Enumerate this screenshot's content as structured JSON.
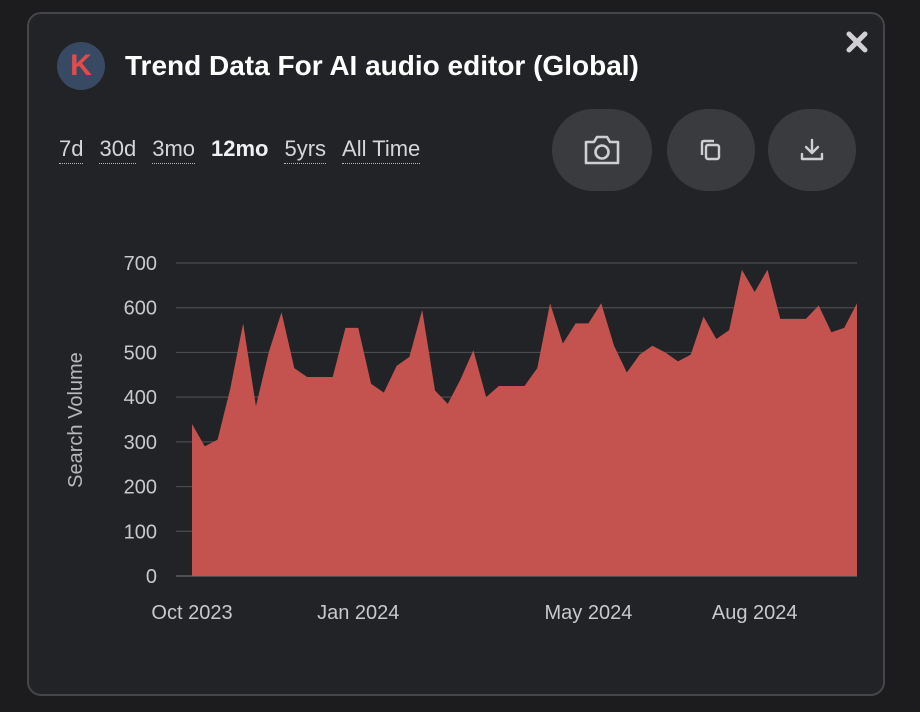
{
  "header": {
    "logo_letter": "K",
    "title": "Trend Data For AI audio editor (Global)"
  },
  "ranges": [
    {
      "label": "7d",
      "active": false
    },
    {
      "label": "30d",
      "active": false
    },
    {
      "label": "3mo",
      "active": false
    },
    {
      "label": "12mo",
      "active": true
    },
    {
      "label": "5yrs",
      "active": false
    },
    {
      "label": "All Time",
      "active": false
    }
  ],
  "actions": {
    "screenshot_icon": "camera-icon",
    "copy_icon": "copy-icon",
    "download_icon": "download-icon",
    "close_icon": "close-icon"
  },
  "colors": {
    "area_fill": "#c4524f",
    "logo_bg": "#384a63",
    "logo_letter": "#e24b4b"
  },
  "chart_data": {
    "type": "area",
    "ylabel": "Search Volume",
    "xlabel": "",
    "ylim": [
      0,
      700
    ],
    "yticks": [
      0,
      100,
      200,
      300,
      400,
      500,
      600,
      700
    ],
    "xtick_labels": [
      {
        "label": "Oct 2023",
        "index": 0
      },
      {
        "label": "Jan 2024",
        "index": 13
      },
      {
        "label": "May 2024",
        "index": 31
      },
      {
        "label": "Aug 2024",
        "index": 44
      }
    ],
    "grid": true,
    "legend": "none",
    "values": [
      340,
      290,
      305,
      420,
      565,
      380,
      500,
      590,
      465,
      445,
      445,
      445,
      555,
      555,
      430,
      410,
      470,
      490,
      595,
      415,
      385,
      440,
      505,
      400,
      425,
      425,
      425,
      465,
      610,
      520,
      565,
      565,
      610,
      515,
      455,
      495,
      515,
      500,
      480,
      495,
      580,
      530,
      550,
      685,
      635,
      685,
      575,
      575,
      575,
      605,
      545,
      555,
      610
    ]
  }
}
